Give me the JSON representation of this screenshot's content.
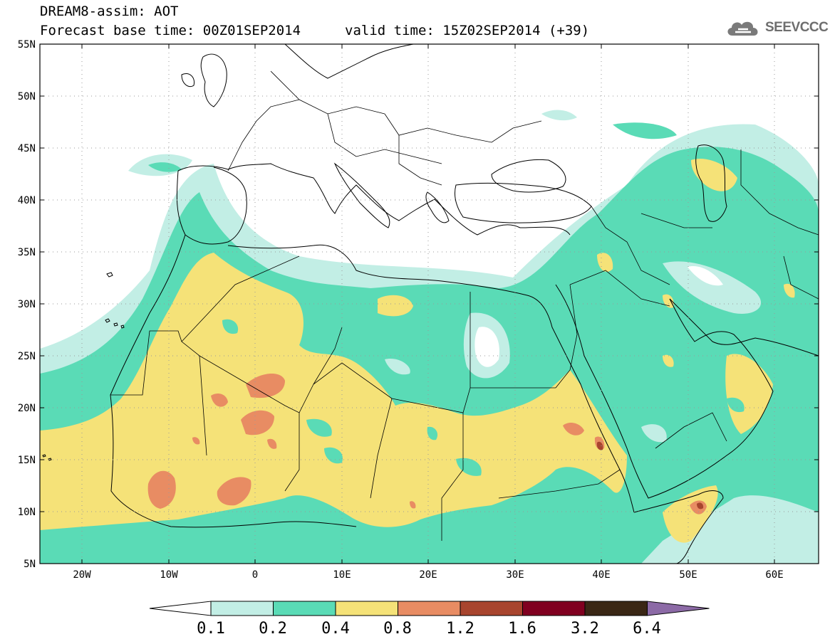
{
  "header": {
    "title": "DREAM8-assim: AOT",
    "base_time": "Forecast base time: 00Z01SEP2014",
    "valid_time": "valid time: 15Z02SEP2014 (+39)",
    "logo_text": "SEEVCCC"
  },
  "map": {
    "lon_range": [
      -25,
      65
    ],
    "lat_range": [
      5,
      55
    ],
    "lon_ticks": [
      "20W",
      "10W",
      "0",
      "10E",
      "20E",
      "30E",
      "40E",
      "50E",
      "60E"
    ],
    "lat_ticks": [
      "55N",
      "50N",
      "45N",
      "40N",
      "35N",
      "30N",
      "25N",
      "20N",
      "15N",
      "10N",
      "5N"
    ]
  },
  "colorbar": {
    "levels": [
      "0.1",
      "0.2",
      "0.4",
      "0.8",
      "1.2",
      "1.6",
      "3.2",
      "6.4"
    ],
    "colors": [
      "#ffffff",
      "#c2eee5",
      "#5adbb6",
      "#f5e278",
      "#e88c63",
      "#a8452e",
      "#800020",
      "#3a2715",
      "#8c6aa6"
    ]
  }
}
